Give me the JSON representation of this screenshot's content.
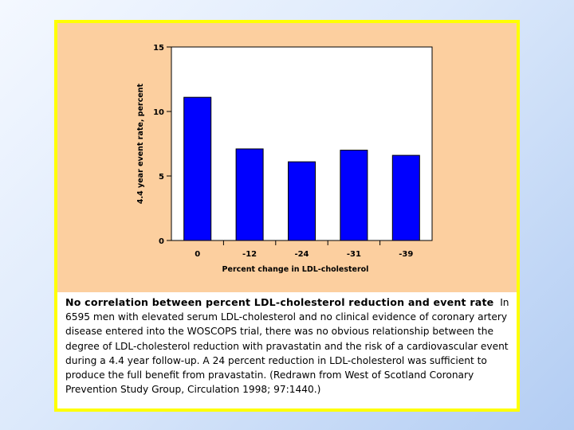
{
  "chart_data": {
    "type": "bar",
    "categories": [
      "0",
      "-12",
      "-24",
      "-31",
      "-39"
    ],
    "values": [
      11.1,
      7.1,
      6.1,
      7.0,
      6.6
    ],
    "xlabel": "Percent change in LDL-cholesterol",
    "ylabel": "4.4 year event rate, percent",
    "ylim": [
      0,
      15
    ],
    "yticks": [
      0,
      5,
      10,
      15
    ],
    "bar_color": "#0000ff",
    "grid": false
  },
  "caption": {
    "title": "No correlation between percent LDL-cholesterol reduction and event rate",
    "body": "In 6595 men with elevated serum LDL-cholesterol and no clinical evidence of coronary artery disease entered into the WOSCOPS trial, there was no obvious relationship between the degree of LDL-cholesterol reduction with pravastatin and the risk of a cardiovascular event during a 4.4 year follow-up. A 24 percent reduction in LDL-cholesterol was sufficient to produce the full benefit from pravastatin. (Redrawn from West of Scotland Coronary Prevention Study Group, Circulation 1998; 97:1440.)"
  },
  "colors": {
    "frame_border": "#ffff00",
    "chart_background": "#fccf9f",
    "slide_background": "#c6dbf6"
  }
}
